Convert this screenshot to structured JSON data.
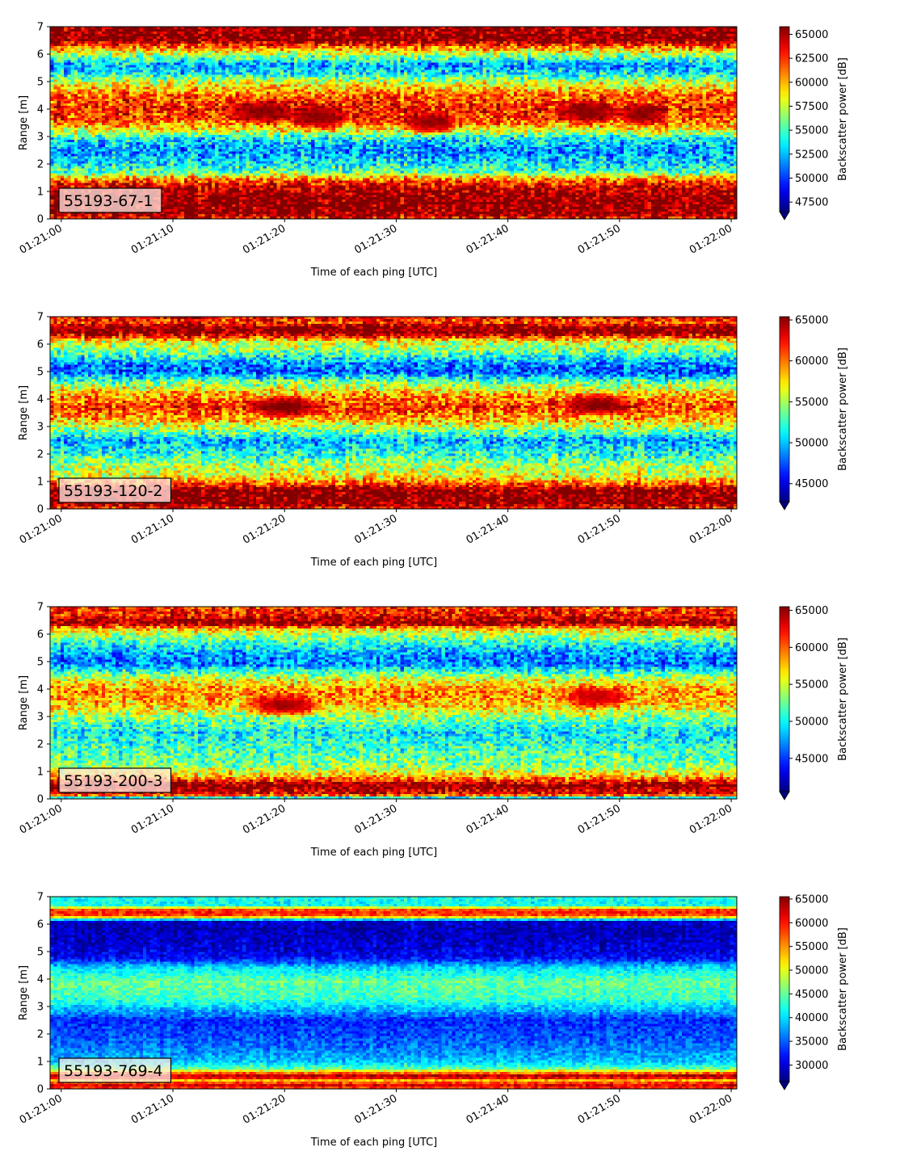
{
  "chart_data": [
    {
      "type": "heatmap",
      "label": "55193-67-1",
      "xlabel": "Time of each ping [UTC]",
      "ylabel": "Range [m]",
      "ylim": [
        0,
        7
      ],
      "xlim_seconds": [
        -1,
        60.5
      ],
      "x_ticks": [
        "01:21:00",
        "01:21:10",
        "01:21:20",
        "01:21:30",
        "01:21:40",
        "01:21:50",
        "01:22:00"
      ],
      "y_ticks": [
        0,
        1,
        2,
        3,
        4,
        5,
        6,
        7
      ],
      "colorbar": {
        "label": "Backscatter power [dB]",
        "min": 46500,
        "max": 65800,
        "ticks": [
          47500,
          50000,
          52500,
          55000,
          57500,
          60000,
          62500,
          65000
        ],
        "tick_labels": [
          "47500",
          "50000",
          "52500",
          "55000",
          "57500",
          "60000",
          "62500",
          "65000"
        ]
      },
      "profile": [
        {
          "r": 0.0,
          "v": 63000
        },
        {
          "r": 0.2,
          "v": 65800
        },
        {
          "r": 0.8,
          "v": 65800
        },
        {
          "r": 1.1,
          "v": 64500
        },
        {
          "r": 1.3,
          "v": 63000
        },
        {
          "r": 1.5,
          "v": 60000
        },
        {
          "r": 1.7,
          "v": 55500
        },
        {
          "r": 2.0,
          "v": 53500
        },
        {
          "r": 2.5,
          "v": 51500
        },
        {
          "r": 2.9,
          "v": 53500
        },
        {
          "r": 3.2,
          "v": 58000
        },
        {
          "r": 3.6,
          "v": 62000
        },
        {
          "r": 4.0,
          "v": 63000
        },
        {
          "r": 4.5,
          "v": 61500
        },
        {
          "r": 5.0,
          "v": 57500
        },
        {
          "r": 5.3,
          "v": 53500
        },
        {
          "r": 5.6,
          "v": 52000
        },
        {
          "r": 5.9,
          "v": 56000
        },
        {
          "r": 6.2,
          "v": 60000
        },
        {
          "r": 6.5,
          "v": 65800
        },
        {
          "r": 7.0,
          "v": 65800
        }
      ],
      "noise": 4200,
      "hot_patches": [
        {
          "t": 18,
          "r": 3.9,
          "w": 3.5,
          "h": 0.5,
          "v": 66000
        },
        {
          "t": 23,
          "r": 3.7,
          "w": 3.0,
          "h": 0.55,
          "v": 66000
        },
        {
          "t": 33,
          "r": 3.5,
          "w": 3.0,
          "h": 0.5,
          "v": 66000
        },
        {
          "t": 47,
          "r": 3.9,
          "w": 3.5,
          "h": 0.5,
          "v": 66000
        },
        {
          "t": 52,
          "r": 3.8,
          "w": 2.5,
          "h": 0.45,
          "v": 66000
        }
      ]
    },
    {
      "type": "heatmap",
      "label": "55193-120-2",
      "xlabel": "Time of each ping [UTC]",
      "ylabel": "Range [m]",
      "ylim": [
        0,
        7
      ],
      "xlim_seconds": [
        -1,
        60.5
      ],
      "x_ticks": [
        "01:21:00",
        "01:21:10",
        "01:21:20",
        "01:21:30",
        "01:21:40",
        "01:21:50",
        "01:22:00"
      ],
      "y_ticks": [
        0,
        1,
        2,
        3,
        4,
        5,
        6,
        7
      ],
      "colorbar": {
        "label": "Backscatter power [dB]",
        "min": 42800,
        "max": 65400,
        "ticks": [
          45000,
          50000,
          55000,
          60000,
          65000
        ],
        "tick_labels": [
          "45000",
          "50000",
          "55000",
          "60000",
          "65000"
        ]
      },
      "profile": [
        {
          "r": 0.0,
          "v": 62000
        },
        {
          "r": 0.2,
          "v": 65400
        },
        {
          "r": 0.7,
          "v": 65400
        },
        {
          "r": 0.9,
          "v": 61000
        },
        {
          "r": 1.2,
          "v": 56500
        },
        {
          "r": 1.6,
          "v": 55000
        },
        {
          "r": 2.0,
          "v": 52000
        },
        {
          "r": 2.5,
          "v": 49500
        },
        {
          "r": 2.8,
          "v": 53500
        },
        {
          "r": 3.2,
          "v": 58000
        },
        {
          "r": 3.7,
          "v": 61500
        },
        {
          "r": 4.2,
          "v": 58500
        },
        {
          "r": 4.6,
          "v": 54000
        },
        {
          "r": 5.0,
          "v": 47500
        },
        {
          "r": 5.3,
          "v": 49000
        },
        {
          "r": 5.7,
          "v": 53500
        },
        {
          "r": 6.1,
          "v": 56500
        },
        {
          "r": 6.4,
          "v": 65400
        },
        {
          "r": 6.6,
          "v": 65400
        },
        {
          "r": 6.8,
          "v": 61000
        },
        {
          "r": 7.0,
          "v": 63000
        }
      ],
      "noise": 4800,
      "hot_patches": [
        {
          "t": 20,
          "r": 3.7,
          "w": 4.0,
          "h": 0.45,
          "v": 66000
        },
        {
          "t": 48,
          "r": 3.8,
          "w": 3.5,
          "h": 0.45,
          "v": 66000
        }
      ]
    },
    {
      "type": "heatmap",
      "label": "55193-200-3",
      "xlabel": "Time of each ping [UTC]",
      "ylabel": "Range [m]",
      "ylim": [
        0,
        7
      ],
      "xlim_seconds": [
        -1,
        60.5
      ],
      "x_ticks": [
        "01:21:00",
        "01:21:10",
        "01:21:20",
        "01:21:30",
        "01:21:40",
        "01:21:50",
        "01:22:00"
      ],
      "y_ticks": [
        0,
        1,
        2,
        3,
        4,
        5,
        6,
        7
      ],
      "colorbar": {
        "label": "Backscatter power [dB]",
        "min": 40500,
        "max": 65500,
        "ticks": [
          45000,
          50000,
          55000,
          60000,
          65000
        ],
        "tick_labels": [
          "45000",
          "50000",
          "55000",
          "60000",
          "65000"
        ]
      },
      "profile": [
        {
          "r": 0.0,
          "v": 45000
        },
        {
          "r": 0.15,
          "v": 62000
        },
        {
          "r": 0.5,
          "v": 65500
        },
        {
          "r": 0.8,
          "v": 58000
        },
        {
          "r": 1.2,
          "v": 53000
        },
        {
          "r": 1.8,
          "v": 51500
        },
        {
          "r": 2.4,
          "v": 49500
        },
        {
          "r": 2.9,
          "v": 52500
        },
        {
          "r": 3.4,
          "v": 57500
        },
        {
          "r": 3.9,
          "v": 59000
        },
        {
          "r": 4.4,
          "v": 55000
        },
        {
          "r": 4.9,
          "v": 46500
        },
        {
          "r": 5.3,
          "v": 47500
        },
        {
          "r": 5.8,
          "v": 52000
        },
        {
          "r": 6.2,
          "v": 57000
        },
        {
          "r": 6.4,
          "v": 65500
        },
        {
          "r": 6.7,
          "v": 62000
        },
        {
          "r": 7.0,
          "v": 61000
        }
      ],
      "noise": 5000,
      "hot_patches": [
        {
          "t": 20,
          "r": 3.4,
          "w": 4.0,
          "h": 0.45,
          "v": 65500
        },
        {
          "t": 48,
          "r": 3.7,
          "w": 3.5,
          "h": 0.45,
          "v": 64500
        }
      ]
    },
    {
      "type": "heatmap",
      "label": "55193-769-4",
      "xlabel": "Time of each ping [UTC]",
      "ylabel": "Range [m]",
      "ylim": [
        0,
        7
      ],
      "xlim_seconds": [
        -1,
        60.5
      ],
      "x_ticks": [
        "01:21:00",
        "01:21:10",
        "01:21:20",
        "01:21:30",
        "01:21:40",
        "01:21:50",
        "01:22:00"
      ],
      "y_ticks": [
        0,
        1,
        2,
        3,
        4,
        5,
        6,
        7
      ],
      "colorbar": {
        "label": "Backscatter power [dB]",
        "min": 26500,
        "max": 65500,
        "ticks": [
          30000,
          35000,
          40000,
          45000,
          50000,
          55000,
          60000,
          65000
        ],
        "tick_labels": [
          "30000",
          "35000",
          "40000",
          "45000",
          "50000",
          "55000",
          "60000",
          "65000"
        ]
      },
      "profile": [
        {
          "r": 0.0,
          "v": 58000
        },
        {
          "r": 0.15,
          "v": 62000
        },
        {
          "r": 0.3,
          "v": 53000
        },
        {
          "r": 0.45,
          "v": 65500
        },
        {
          "r": 0.6,
          "v": 54000
        },
        {
          "r": 0.75,
          "v": 44000
        },
        {
          "r": 1.0,
          "v": 39000
        },
        {
          "r": 1.5,
          "v": 36000
        },
        {
          "r": 2.0,
          "v": 34000
        },
        {
          "r": 2.5,
          "v": 33000
        },
        {
          "r": 2.8,
          "v": 37000
        },
        {
          "r": 3.3,
          "v": 43500
        },
        {
          "r": 3.9,
          "v": 45000
        },
        {
          "r": 4.4,
          "v": 40000
        },
        {
          "r": 4.8,
          "v": 31000
        },
        {
          "r": 5.3,
          "v": 29500
        },
        {
          "r": 5.8,
          "v": 28500
        },
        {
          "r": 6.1,
          "v": 29500
        },
        {
          "r": 6.3,
          "v": 58000
        },
        {
          "r": 6.5,
          "v": 60000
        },
        {
          "r": 6.7,
          "v": 41000
        },
        {
          "r": 7.0,
          "v": 42000
        }
      ],
      "noise": 4000,
      "hot_patches": []
    }
  ]
}
